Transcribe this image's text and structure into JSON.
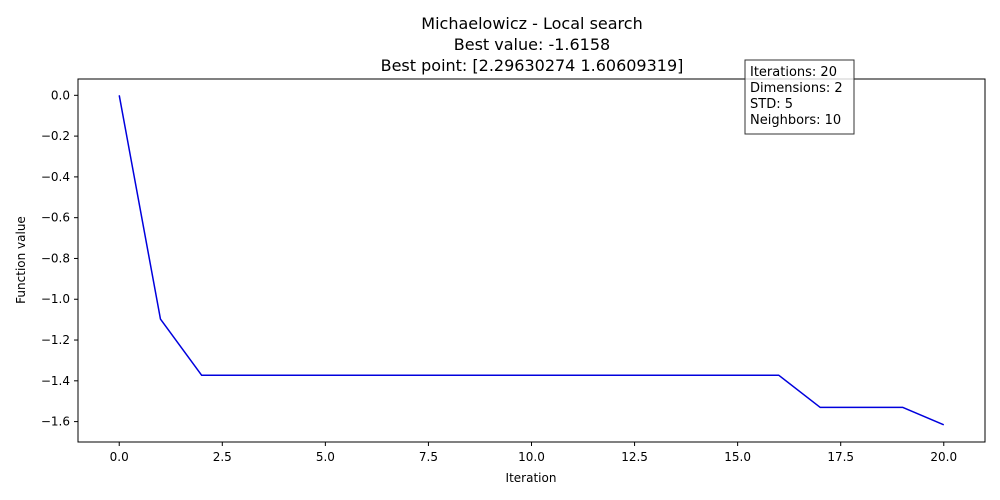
{
  "chart_data": {
    "type": "line",
    "title_lines": [
      "Michaelowicz - Local search",
      "Best value: -1.6158",
      "Best point: [2.29630274 1.60609319]"
    ],
    "xlabel": "Iteration",
    "ylabel": "Function value",
    "xlim": [
      -1.0,
      21.0
    ],
    "ylim": [
      -1.7,
      0.08
    ],
    "x_ticks": [
      0.0,
      2.5,
      5.0,
      7.5,
      10.0,
      12.5,
      15.0,
      17.5,
      20.0
    ],
    "x_tick_labels": [
      "0.0",
      "2.5",
      "5.0",
      "7.5",
      "10.0",
      "12.5",
      "15.0",
      "17.5",
      "20.0"
    ],
    "y_ticks": [
      0.0,
      -0.2,
      -0.4,
      -0.6,
      -0.8,
      -1.0,
      -1.2,
      -1.4,
      -1.6
    ],
    "y_tick_labels": [
      "0.0",
      "−0.2",
      "−0.4",
      "−0.6",
      "−0.8",
      "−1.0",
      "−1.2",
      "−1.4",
      "−1.6"
    ],
    "grid": false,
    "series": [
      {
        "color": "#0000dd",
        "x": [
          0,
          1,
          2,
          3,
          4,
          5,
          6,
          7,
          8,
          9,
          10,
          11,
          12,
          13,
          14,
          15,
          16,
          17,
          18,
          19,
          20
        ],
        "y": [
          0.0,
          -1.097,
          -1.373,
          -1.373,
          -1.373,
          -1.373,
          -1.373,
          -1.373,
          -1.373,
          -1.373,
          -1.373,
          -1.373,
          -1.373,
          -1.373,
          -1.373,
          -1.373,
          -1.373,
          -1.53,
          -1.53,
          -1.53,
          -1.6158
        ]
      }
    ],
    "annotation_box": {
      "lines": [
        "Iterations: 20",
        "Dimensions: 2",
        "STD: 5",
        "Neighbors: 10"
      ]
    }
  }
}
